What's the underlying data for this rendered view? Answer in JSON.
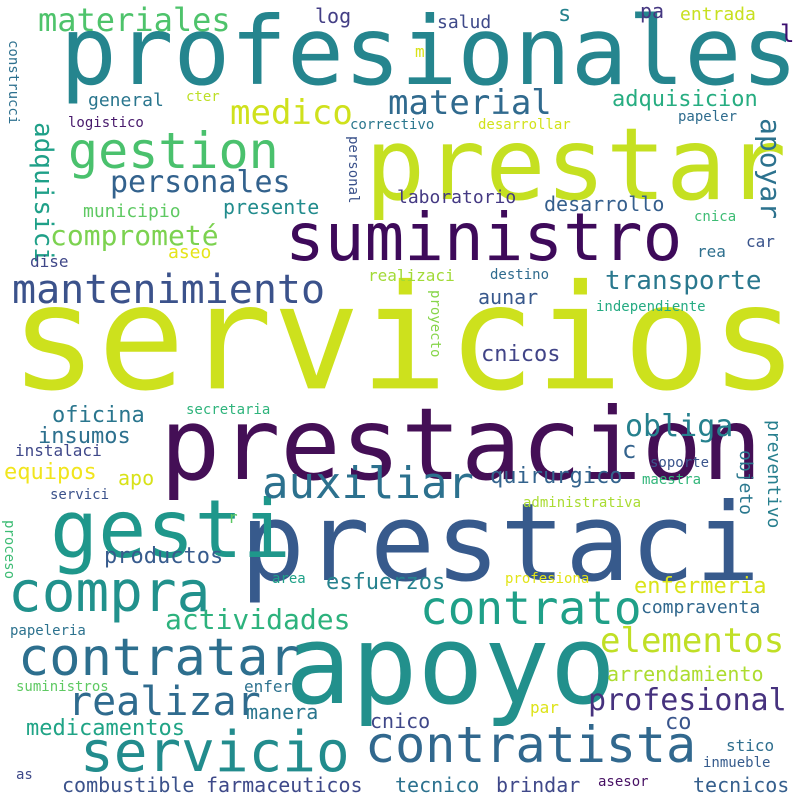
{
  "title": "",
  "palette_note_colors": [
    "#440154",
    "#3b528b",
    "#21918c",
    "#5ec962",
    "#fde725"
  ],
  "words": [
    {
      "text": "servicios",
      "color": "#cde11d"
    },
    {
      "text": "apoyo",
      "color": "#22908c"
    },
    {
      "text": "prestaci",
      "color": "#375a8c"
    },
    {
      "text": "profesionales",
      "color": "#25858e"
    },
    {
      "text": "prestar",
      "color": "#c5e021"
    },
    {
      "text": "prestacion",
      "color": "#440f56"
    },
    {
      "text": "suministro",
      "color": "#3e0a5a"
    },
    {
      "text": "gesti",
      "color": "#1f978b"
    },
    {
      "text": "contratista",
      "color": "#31688e"
    },
    {
      "text": "servicio",
      "color": "#228c8d"
    },
    {
      "text": "contratar",
      "color": "#2d6f8e"
    },
    {
      "text": "compra",
      "color": "#21918c"
    },
    {
      "text": "contrato",
      "color": "#1fa088"
    },
    {
      "text": "auxiliar",
      "color": "#2c718e"
    },
    {
      "text": "mantenimiento",
      "color": "#3b528b"
    },
    {
      "text": "gestion",
      "color": "#4ac16d"
    },
    {
      "text": "realizar",
      "color": "#2f6b8e"
    },
    {
      "text": "materiales",
      "color": "#4ec36b"
    },
    {
      "text": "material",
      "color": "#306a8e"
    },
    {
      "text": "personales",
      "color": "#33628d"
    },
    {
      "text": "medico",
      "color": "#cfe11c"
    },
    {
      "text": "profesional",
      "color": "#46327e"
    },
    {
      "text": "elementos",
      "color": "#c0df25"
    },
    {
      "text": "obliga",
      "color": "#26818e"
    },
    {
      "text": "actividades",
      "color": "#2db27d"
    },
    {
      "text": "transporte",
      "color": "#2a788e"
    },
    {
      "text": "comprometé",
      "color": "#7cd250"
    },
    {
      "text": "apoyar",
      "color": "#2c728e"
    },
    {
      "text": "quirurgico",
      "color": "#33638d"
    },
    {
      "text": "insumos",
      "color": "#2d708e"
    },
    {
      "text": "adquisicion",
      "color": "#27ad81"
    },
    {
      "text": "adquisici",
      "color": "#1fa088"
    },
    {
      "text": "esfuerzos",
      "color": "#26828e"
    },
    {
      "text": "enfermeria",
      "color": "#dae319"
    },
    {
      "text": "medicamentos",
      "color": "#20a486"
    },
    {
      "text": "productos",
      "color": "#375b8d"
    },
    {
      "text": "compraventa",
      "color": "#31688e"
    },
    {
      "text": "arrendamiento",
      "color": "#addc30"
    },
    {
      "text": "oficina",
      "color": "#2a768e"
    },
    {
      "text": "equipos",
      "color": "#f1e51d"
    },
    {
      "text": "combustible",
      "color": "#3b528b"
    },
    {
      "text": "farmaceuticos",
      "color": "#3e4989"
    },
    {
      "text": "tecnico",
      "color": "#2c718e"
    },
    {
      "text": "brindar",
      "color": "#3f4889"
    },
    {
      "text": "tecnicos",
      "color": "#355f8d"
    },
    {
      "text": "manera",
      "color": "#2a768e"
    },
    {
      "text": "cnico",
      "color": "#3f4788"
    },
    {
      "text": "cnicos",
      "color": "#414487"
    },
    {
      "text": "aunar",
      "color": "#38588c"
    },
    {
      "text": "desarrollo",
      "color": "#355f8d"
    },
    {
      "text": "presente",
      "color": "#228c8d"
    },
    {
      "text": "municipio",
      "color": "#5ec962"
    },
    {
      "text": "laboratorio",
      "color": "#443983"
    },
    {
      "text": "general",
      "color": "#2a768e"
    },
    {
      "text": "salud",
      "color": "#3e4989"
    },
    {
      "text": "log",
      "color": "#433e85"
    },
    {
      "text": "entrada",
      "color": "#c8e020"
    },
    {
      "text": "pa",
      "color": "#453781"
    },
    {
      "text": "s",
      "color": "#26828e"
    },
    {
      "text": "l",
      "color": "#3b0f70"
    },
    {
      "text": "m",
      "color": "#d8e219"
    },
    {
      "text": "cter",
      "color": "#bddf26"
    },
    {
      "text": "logistico",
      "color": "#481a6c"
    },
    {
      "text": "correctivo",
      "color": "#2a778e"
    },
    {
      "text": "desarrollar",
      "color": "#d2e21b"
    },
    {
      "text": "papeler",
      "color": "#2f6c8e"
    },
    {
      "text": "cnica",
      "color": "#3dbc74"
    },
    {
      "text": "car",
      "color": "#3a548c"
    },
    {
      "text": "rea",
      "color": "#2e6f8e"
    },
    {
      "text": "aseo",
      "color": "#e5e419"
    },
    {
      "text": "dise",
      "color": "#3f4788"
    },
    {
      "text": "realizaci",
      "color": "#a2da37"
    },
    {
      "text": "destino",
      "color": "#2f6b8e"
    },
    {
      "text": "independiente",
      "color": "#25ab82"
    },
    {
      "text": "secretaria",
      "color": "#2fb47c"
    },
    {
      "text": "instalaci",
      "color": "#3f4889"
    },
    {
      "text": "apo",
      "color": "#d8e219"
    },
    {
      "text": "c",
      "color": "#33638d"
    },
    {
      "text": "soporte",
      "color": "#3a548c"
    },
    {
      "text": "maestra",
      "color": "#32b67a"
    },
    {
      "text": "servici",
      "color": "#3b528b"
    },
    {
      "text": "administrativa",
      "color": "#aadc32"
    },
    {
      "text": "r",
      "color": "#5cc863"
    },
    {
      "text": "area",
      "color": "#1fa188"
    },
    {
      "text": "profesiona",
      "color": "#e2e418"
    },
    {
      "text": "papeleria",
      "color": "#2c728e"
    },
    {
      "text": "enfer",
      "color": "#2c718e"
    },
    {
      "text": "suministros",
      "color": "#5ec962"
    },
    {
      "text": "par",
      "color": "#dde318"
    },
    {
      "text": "co",
      "color": "#39558c"
    },
    {
      "text": "stico",
      "color": "#2e6e8e"
    },
    {
      "text": "inmueble",
      "color": "#365c8d"
    },
    {
      "text": "as",
      "color": "#3e4989"
    },
    {
      "text": "asesor",
      "color": "#471164"
    },
    {
      "text": "construcci",
      "color": "#2d708e"
    },
    {
      "text": "personal",
      "color": "#3b528b"
    },
    {
      "text": "proyecto",
      "color": "#86d549"
    },
    {
      "text": "objeto",
      "color": "#2a788e"
    },
    {
      "text": "preventivo",
      "color": "#277f8e"
    },
    {
      "text": "proceso",
      "color": "#3dbc74"
    }
  ]
}
